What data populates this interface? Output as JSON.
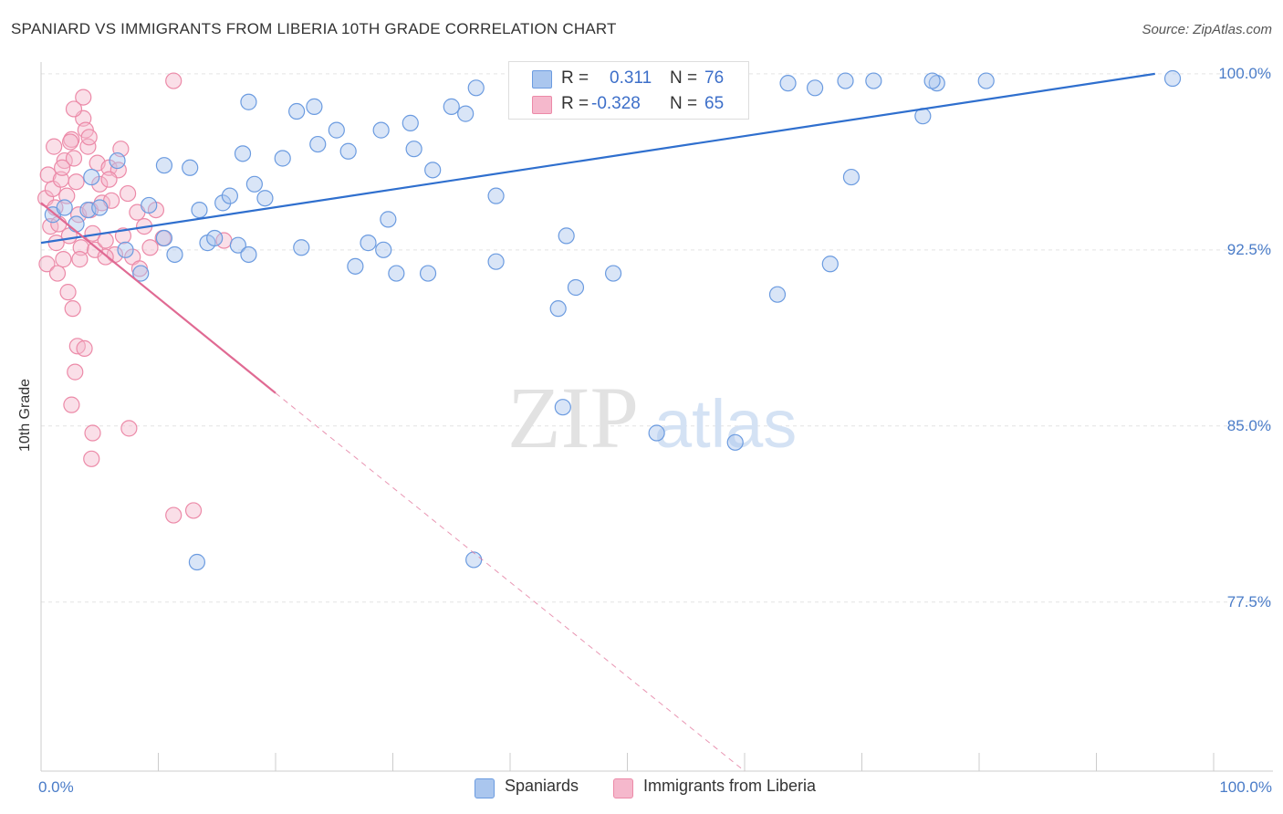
{
  "title": "SPANIARD VS IMMIGRANTS FROM LIBERIA 10TH GRADE CORRELATION CHART",
  "source": "Source: ZipAtlas.com",
  "watermark": {
    "zip": "ZIP",
    "atlas": "atlas"
  },
  "legend": {
    "r_label": "R =",
    "n_label": "N =",
    "series1_r": "0.311",
    "series1_n": "76",
    "series2_r": "-0.328",
    "series2_n": "65"
  },
  "bottom_legend": {
    "series1": "Spaniards",
    "series2": "Immigrants from Liberia"
  },
  "colors": {
    "blue_fill": "#aac6ee",
    "blue_stroke": "#6b9be0",
    "blue_line": "#2f6fce",
    "pink_fill": "#f5b8cc",
    "pink_stroke": "#ec8aa8",
    "pink_line": "#e06a93"
  },
  "chart_data": {
    "type": "scatter",
    "title": "SPANIARD VS IMMIGRANTS FROM LIBERIA 10TH GRADE CORRELATION CHART",
    "xlabel": "",
    "ylabel": "10th Grade",
    "xlim": [
      0,
      100
    ],
    "ylim": [
      70.3,
      100.5
    ],
    "y_ticks": [
      {
        "value": 100,
        "label": "100.0%"
      },
      {
        "value": 92.5,
        "label": "92.5%"
      },
      {
        "value": 85,
        "label": "85.0%"
      },
      {
        "value": 77.5,
        "label": "77.5%"
      }
    ],
    "x_ticks": [
      {
        "value": 0,
        "label": "0.0%"
      },
      {
        "value": 100,
        "label": "100.0%"
      }
    ],
    "grid": true,
    "series": [
      {
        "name": "Spaniards",
        "R": 0.311,
        "N": 76,
        "trend": {
          "x": [
            0,
            95
          ],
          "y": [
            92.8,
            100.0
          ]
        },
        "points": [
          [
            1,
            94.0
          ],
          [
            2,
            94.3
          ],
          [
            3,
            93.6
          ],
          [
            4,
            94.2
          ],
          [
            5,
            94.3
          ],
          [
            4.3,
            95.6
          ],
          [
            6.5,
            96.3
          ],
          [
            7.2,
            92.5
          ],
          [
            8.5,
            91.5
          ],
          [
            9.2,
            94.4
          ],
          [
            10.5,
            96.1
          ],
          [
            11.4,
            92.3
          ],
          [
            12.7,
            96.0
          ],
          [
            13.5,
            94.2
          ],
          [
            14.2,
            92.8
          ],
          [
            14.8,
            93.0
          ],
          [
            15.5,
            94.5
          ],
          [
            16.1,
            94.8
          ],
          [
            16.8,
            92.7
          ],
          [
            17.2,
            96.6
          ],
          [
            17.7,
            92.3
          ],
          [
            18.2,
            95.3
          ],
          [
            19.1,
            94.7
          ],
          [
            20.6,
            96.4
          ],
          [
            22.2,
            92.6
          ],
          [
            23.6,
            97.0
          ],
          [
            25.2,
            97.6
          ],
          [
            26.2,
            96.7
          ],
          [
            27.9,
            92.8
          ],
          [
            29.0,
            97.6
          ],
          [
            29.6,
            93.8
          ],
          [
            30.3,
            91.5
          ],
          [
            31.8,
            96.8
          ],
          [
            33.4,
            95.9
          ],
          [
            35.0,
            98.6
          ],
          [
            36.2,
            98.3
          ],
          [
            37.1,
            99.4
          ],
          [
            38.8,
            94.8
          ],
          [
            40.6,
            99.5
          ],
          [
            41.7,
            99.6
          ],
          [
            42.6,
            99.4
          ],
          [
            44.8,
            93.1
          ],
          [
            44.1,
            90.0
          ],
          [
            45.6,
            90.9
          ],
          [
            47.3,
            99.7
          ],
          [
            48.8,
            91.5
          ],
          [
            51.2,
            99.7
          ],
          [
            53.4,
            99.7
          ],
          [
            55.0,
            99.7
          ],
          [
            56.5,
            99.6
          ],
          [
            63.7,
            99.6
          ],
          [
            66.0,
            99.4
          ],
          [
            68.6,
            99.7
          ],
          [
            71.0,
            99.7
          ],
          [
            76.4,
            99.6
          ],
          [
            76.0,
            99.7
          ],
          [
            17.7,
            98.8
          ],
          [
            21.8,
            98.4
          ],
          [
            23.3,
            98.6
          ],
          [
            26.8,
            91.8
          ],
          [
            29.2,
            92.5
          ],
          [
            31.5,
            97.9
          ],
          [
            33.0,
            91.5
          ],
          [
            38.8,
            92.0
          ],
          [
            44.5,
            85.8
          ],
          [
            52.5,
            84.7
          ],
          [
            62.8,
            90.6
          ],
          [
            67.3,
            91.9
          ],
          [
            59.2,
            84.3
          ],
          [
            80.6,
            99.7
          ],
          [
            96.5,
            99.8
          ],
          [
            69.1,
            95.6
          ],
          [
            75.2,
            98.2
          ],
          [
            13.3,
            79.2
          ],
          [
            36.9,
            79.3
          ],
          [
            10.5,
            93.0
          ]
        ]
      },
      {
        "name": "Immigrants from Liberia",
        "R": -0.328,
        "N": 65,
        "trend": {
          "x": [
            0,
            20
          ],
          "y": [
            94.5,
            86.4
          ]
        },
        "trend_extension": {
          "x": [
            20,
            60
          ],
          "y": [
            86.4,
            70.3
          ]
        },
        "points": [
          [
            0.4,
            94.7
          ],
          [
            0.6,
            95.7
          ],
          [
            0.8,
            93.5
          ],
          [
            1.0,
            95.1
          ],
          [
            1.2,
            94.3
          ],
          [
            1.3,
            92.8
          ],
          [
            1.5,
            93.6
          ],
          [
            1.7,
            95.5
          ],
          [
            1.9,
            92.1
          ],
          [
            2.0,
            96.3
          ],
          [
            2.2,
            94.8
          ],
          [
            2.4,
            93.1
          ],
          [
            2.6,
            97.2
          ],
          [
            2.8,
            96.4
          ],
          [
            3.0,
            95.4
          ],
          [
            3.2,
            94.0
          ],
          [
            3.4,
            92.6
          ],
          [
            3.6,
            98.1
          ],
          [
            3.8,
            97.6
          ],
          [
            4.0,
            96.9
          ],
          [
            4.2,
            94.2
          ],
          [
            4.4,
            93.2
          ],
          [
            4.6,
            92.5
          ],
          [
            4.8,
            96.2
          ],
          [
            5.0,
            95.3
          ],
          [
            5.2,
            94.5
          ],
          [
            5.5,
            92.9
          ],
          [
            5.8,
            96.0
          ],
          [
            6.0,
            94.6
          ],
          [
            6.3,
            92.3
          ],
          [
            6.6,
            95.9
          ],
          [
            7.0,
            93.1
          ],
          [
            7.4,
            94.9
          ],
          [
            7.8,
            92.2
          ],
          [
            8.2,
            94.1
          ],
          [
            8.8,
            93.5
          ],
          [
            9.3,
            92.6
          ],
          [
            9.8,
            94.2
          ],
          [
            10.4,
            93.0
          ],
          [
            0.5,
            91.9
          ],
          [
            1.4,
            91.5
          ],
          [
            2.3,
            90.7
          ],
          [
            2.7,
            90.0
          ],
          [
            3.1,
            88.4
          ],
          [
            2.9,
            87.3
          ],
          [
            3.7,
            88.3
          ],
          [
            2.6,
            85.9
          ],
          [
            4.4,
            84.7
          ],
          [
            7.5,
            84.9
          ],
          [
            4.3,
            83.6
          ],
          [
            11.3,
            99.7
          ],
          [
            3.6,
            99.0
          ],
          [
            2.8,
            98.5
          ],
          [
            2.5,
            97.1
          ],
          [
            4.1,
            97.3
          ],
          [
            5.8,
            95.5
          ],
          [
            6.8,
            96.8
          ],
          [
            1.1,
            96.9
          ],
          [
            1.8,
            96.0
          ],
          [
            3.3,
            92.1
          ],
          [
            5.5,
            92.2
          ],
          [
            8.4,
            91.7
          ],
          [
            15.6,
            92.9
          ],
          [
            11.3,
            81.2
          ],
          [
            13.0,
            81.4
          ]
        ]
      }
    ]
  }
}
